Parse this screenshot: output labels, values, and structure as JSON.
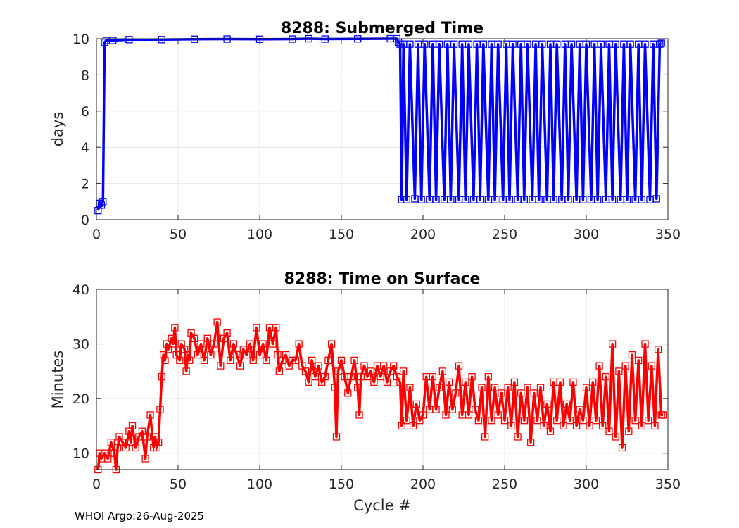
{
  "footer": "WHOI Argo:26-Aug-2025",
  "chart_data": [
    {
      "type": "line",
      "title": "8288: Submerged Time",
      "xlabel": "",
      "ylabel": "days",
      "xlim": [
        0,
        350
      ],
      "ylim": [
        0,
        10
      ],
      "xticks": [
        0,
        50,
        100,
        150,
        200,
        250,
        300,
        350
      ],
      "yticks": [
        0,
        2,
        4,
        6,
        8,
        10
      ],
      "color": "#0000ff",
      "series": [
        {
          "name": "Submerged Time",
          "points": [
            [
              1,
              0.5
            ],
            [
              2,
              0.9
            ],
            [
              3,
              0.8
            ],
            [
              4,
              1.0
            ],
            [
              5,
              9.8
            ],
            [
              6,
              9.9
            ],
            [
              10,
              9.9
            ],
            [
              20,
              9.95
            ],
            [
              40,
              9.95
            ],
            [
              60,
              9.97
            ],
            [
              80,
              9.98
            ],
            [
              100,
              9.97
            ],
            [
              120,
              9.98
            ],
            [
              130,
              10.0
            ],
            [
              140,
              9.98
            ],
            [
              160,
              9.99
            ],
            [
              180,
              10.0
            ],
            [
              184,
              10.0
            ],
            [
              185,
              9.8
            ],
            [
              186,
              9.7
            ],
            [
              187,
              1.1
            ],
            [
              188,
              9.7
            ],
            [
              190,
              1.1
            ],
            [
              192,
              9.7
            ],
            [
              195,
              1.15
            ],
            [
              197,
              9.7
            ],
            [
              199,
              1.1
            ],
            [
              201,
              9.7
            ],
            [
              204,
              1.1
            ],
            [
              206,
              9.7
            ],
            [
              208,
              1.1
            ],
            [
              210,
              9.7
            ],
            [
              213,
              1.1
            ],
            [
              215,
              9.7
            ],
            [
              217,
              1.1
            ],
            [
              219,
              9.7
            ],
            [
              222,
              1.1
            ],
            [
              224,
              9.7
            ],
            [
              226,
              1.1
            ],
            [
              228,
              9.7
            ],
            [
              231,
              1.1
            ],
            [
              233,
              9.7
            ],
            [
              235,
              1.1
            ],
            [
              237,
              9.7
            ],
            [
              240,
              1.1
            ],
            [
              242,
              9.7
            ],
            [
              244,
              1.1
            ],
            [
              246,
              9.7
            ],
            [
              249,
              1.1
            ],
            [
              251,
              9.7
            ],
            [
              253,
              1.1
            ],
            [
              255,
              9.7
            ],
            [
              258,
              1.1
            ],
            [
              260,
              9.7
            ],
            [
              262,
              1.1
            ],
            [
              264,
              9.7
            ],
            [
              267,
              1.1
            ],
            [
              269,
              9.7
            ],
            [
              271,
              1.1
            ],
            [
              273,
              9.7
            ],
            [
              276,
              1.1
            ],
            [
              278,
              9.7
            ],
            [
              280,
              1.1
            ],
            [
              282,
              9.7
            ],
            [
              285,
              1.1
            ],
            [
              287,
              9.7
            ],
            [
              289,
              1.1
            ],
            [
              291,
              9.7
            ],
            [
              294,
              1.1
            ],
            [
              296,
              9.7
            ],
            [
              298,
              1.1
            ],
            [
              300,
              9.7
            ],
            [
              303,
              1.1
            ],
            [
              305,
              9.7
            ],
            [
              307,
              1.1
            ],
            [
              309,
              9.7
            ],
            [
              312,
              1.1
            ],
            [
              314,
              9.7
            ],
            [
              316,
              1.1
            ],
            [
              318,
              9.7
            ],
            [
              321,
              1.1
            ],
            [
              323,
              9.7
            ],
            [
              325,
              1.1
            ],
            [
              327,
              9.7
            ],
            [
              330,
              1.1
            ],
            [
              332,
              9.7
            ],
            [
              334,
              1.1
            ],
            [
              336,
              9.7
            ],
            [
              339,
              1.1
            ],
            [
              341,
              9.7
            ],
            [
              343,
              1.15
            ],
            [
              345,
              9.7
            ],
            [
              346,
              9.75
            ]
          ]
        }
      ]
    },
    {
      "type": "line",
      "title": "8288: Time on Surface",
      "xlabel": "Cycle #",
      "ylabel": "Minutes",
      "xlim": [
        0,
        350
      ],
      "ylim": [
        7,
        40
      ],
      "xticks": [
        0,
        50,
        100,
        150,
        200,
        250,
        300,
        350
      ],
      "yticks": [
        10,
        20,
        30,
        40
      ],
      "color": "#ff0000",
      "series": [
        {
          "name": "Time on Surface",
          "points": [
            [
              1,
              7
            ],
            [
              2,
              10
            ],
            [
              3,
              9
            ],
            [
              5,
              10
            ],
            [
              7,
              9
            ],
            [
              9,
              12
            ],
            [
              11,
              10
            ],
            [
              12,
              7
            ],
            [
              13,
              11
            ],
            [
              14,
              13
            ],
            [
              16,
              12
            ],
            [
              18,
              11
            ],
            [
              20,
              14
            ],
            [
              21,
              12
            ],
            [
              22,
              15
            ],
            [
              24,
              11
            ],
            [
              26,
              13
            ],
            [
              28,
              14
            ],
            [
              30,
              9
            ],
            [
              31,
              13
            ],
            [
              33,
              17
            ],
            [
              35,
              11
            ],
            [
              36,
              13
            ],
            [
              37,
              11
            ],
            [
              38,
              12
            ],
            [
              39,
              18
            ],
            [
              40,
              24
            ],
            [
              41,
              28
            ],
            [
              42,
              27
            ],
            [
              43,
              30
            ],
            [
              44,
              29
            ],
            [
              46,
              31
            ],
            [
              47,
              30
            ],
            [
              48,
              33
            ],
            [
              49,
              28
            ],
            [
              51,
              27
            ],
            [
              52,
              30
            ],
            [
              54,
              29
            ],
            [
              55,
              25
            ],
            [
              56,
              28
            ],
            [
              57,
              27
            ],
            [
              58,
              32
            ],
            [
              60,
              31
            ],
            [
              62,
              28
            ],
            [
              64,
              30
            ],
            [
              66,
              27
            ],
            [
              68,
              31
            ],
            [
              70,
              28
            ],
            [
              72,
              30
            ],
            [
              74,
              34
            ],
            [
              76,
              26
            ],
            [
              78,
              31
            ],
            [
              80,
              32
            ],
            [
              82,
              27
            ],
            [
              84,
              30
            ],
            [
              86,
              28
            ],
            [
              88,
              26
            ],
            [
              90,
              29
            ],
            [
              92,
              28
            ],
            [
              94,
              30
            ],
            [
              96,
              27
            ],
            [
              98,
              33
            ],
            [
              100,
              28
            ],
            [
              102,
              30
            ],
            [
              104,
              27
            ],
            [
              106,
              33
            ],
            [
              108,
              30
            ],
            [
              110,
              33
            ],
            [
              111,
              28
            ],
            [
              112,
              25
            ],
            [
              114,
              27
            ],
            [
              116,
              28
            ],
            [
              118,
              26
            ],
            [
              120,
              27
            ],
            [
              122,
              27
            ],
            [
              124,
              30
            ],
            [
              126,
              26
            ],
            [
              128,
              25
            ],
            [
              130,
              23
            ],
            [
              132,
              27
            ],
            [
              134,
              24
            ],
            [
              136,
              26
            ],
            [
              138,
              23
            ],
            [
              140,
              24
            ],
            [
              142,
              27
            ],
            [
              144,
              30
            ],
            [
              146,
              22
            ],
            [
              147,
              13
            ],
            [
              148,
              25
            ],
            [
              150,
              27
            ],
            [
              152,
              24
            ],
            [
              154,
              21
            ],
            [
              156,
              24
            ],
            [
              158,
              27
            ],
            [
              160,
              22
            ],
            [
              161,
              17
            ],
            [
              162,
              24
            ],
            [
              164,
              26
            ],
            [
              166,
              24
            ],
            [
              168,
              25
            ],
            [
              170,
              23
            ],
            [
              172,
              26
            ],
            [
              174,
              24
            ],
            [
              176,
              26
            ],
            [
              178,
              23
            ],
            [
              180,
              25
            ],
            [
              182,
              26
            ],
            [
              184,
              24
            ],
            [
              186,
              23
            ],
            [
              187,
              15
            ],
            [
              188,
              25
            ],
            [
              190,
              16
            ],
            [
              192,
              22
            ],
            [
              194,
              15
            ],
            [
              196,
              19
            ],
            [
              198,
              16
            ],
            [
              200,
              17
            ],
            [
              202,
              24
            ],
            [
              204,
              18
            ],
            [
              206,
              24
            ],
            [
              208,
              18
            ],
            [
              210,
              22
            ],
            [
              212,
              25
            ],
            [
              214,
              17
            ],
            [
              216,
              23
            ],
            [
              218,
              18
            ],
            [
              220,
              21
            ],
            [
              222,
              26
            ],
            [
              224,
              17
            ],
            [
              226,
              23
            ],
            [
              228,
              17
            ],
            [
              230,
              24
            ],
            [
              232,
              18
            ],
            [
              234,
              16
            ],
            [
              236,
              22
            ],
            [
              238,
              13
            ],
            [
              240,
              24
            ],
            [
              242,
              16
            ],
            [
              244,
              22
            ],
            [
              246,
              17
            ],
            [
              248,
              21
            ],
            [
              250,
              16
            ],
            [
              252,
              22
            ],
            [
              254,
              15
            ],
            [
              256,
              23
            ],
            [
              258,
              13
            ],
            [
              260,
              21
            ],
            [
              262,
              16
            ],
            [
              264,
              22
            ],
            [
              266,
              12
            ],
            [
              268,
              21
            ],
            [
              270,
              16
            ],
            [
              272,
              22
            ],
            [
              274,
              15
            ],
            [
              276,
              19
            ],
            [
              278,
              14
            ],
            [
              280,
              23
            ],
            [
              282,
              16
            ],
            [
              284,
              23
            ],
            [
              286,
              15
            ],
            [
              288,
              19
            ],
            [
              290,
              16
            ],
            [
              292,
              23
            ],
            [
              294,
              15
            ],
            [
              296,
              18
            ],
            [
              298,
              16
            ],
            [
              300,
              22
            ],
            [
              302,
              15
            ],
            [
              304,
              23
            ],
            [
              306,
              16
            ],
            [
              308,
              26
            ],
            [
              310,
              15
            ],
            [
              312,
              24
            ],
            [
              314,
              14
            ],
            [
              316,
              30
            ],
            [
              318,
              13
            ],
            [
              320,
              25
            ],
            [
              322,
              11
            ],
            [
              324,
              26
            ],
            [
              326,
              14
            ],
            [
              328,
              28
            ],
            [
              330,
              16
            ],
            [
              332,
              27
            ],
            [
              334,
              15
            ],
            [
              336,
              30
            ],
            [
              338,
              16
            ],
            [
              340,
              26
            ],
            [
              342,
              15
            ],
            [
              344,
              29
            ],
            [
              346,
              17
            ],
            [
              347,
              17
            ]
          ]
        }
      ]
    }
  ]
}
